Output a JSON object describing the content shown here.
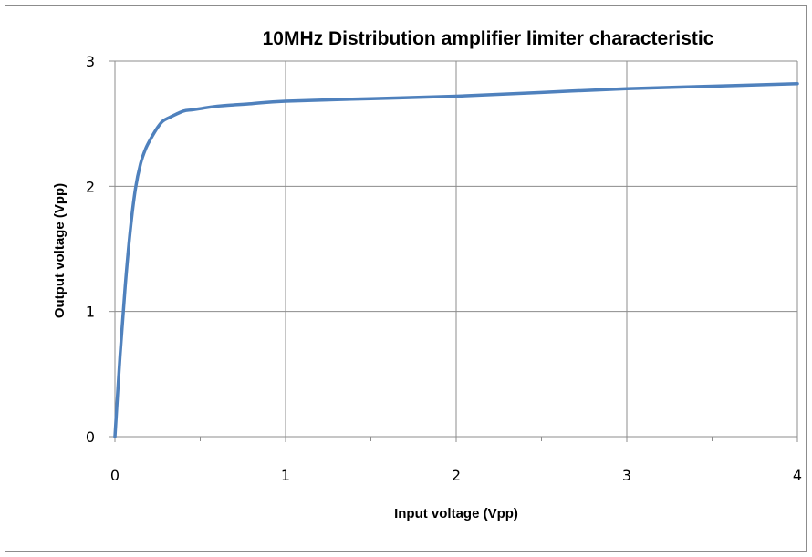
{
  "chart_data": {
    "type": "line",
    "title": "10MHz Distribution amplifier limiter characteristic",
    "xlabel": "Input voltage (Vpp)",
    "ylabel": "Output voltage (Vpp)",
    "xlim": [
      0,
      4
    ],
    "ylim": [
      0,
      3
    ],
    "x_ticks": [
      "0",
      "1",
      "2",
      "3",
      "4"
    ],
    "y_ticks": [
      "0",
      "1",
      "2",
      "3"
    ],
    "grid": true,
    "legend": "none",
    "series": [
      {
        "color": "#4f81bd",
        "x": [
          0,
          0.03,
          0.06,
          0.09,
          0.12,
          0.15,
          0.18,
          0.21,
          0.25,
          0.28,
          0.32,
          0.4,
          0.45,
          0.5,
          0.6,
          0.8,
          1.0,
          1.5,
          2.0,
          2.5,
          3.0,
          3.5,
          4.0
        ],
        "y": [
          0,
          0.65,
          1.2,
          1.65,
          1.98,
          2.18,
          2.3,
          2.38,
          2.47,
          2.52,
          2.55,
          2.6,
          2.61,
          2.62,
          2.64,
          2.66,
          2.68,
          2.7,
          2.72,
          2.75,
          2.78,
          2.8,
          2.82
        ]
      }
    ]
  }
}
